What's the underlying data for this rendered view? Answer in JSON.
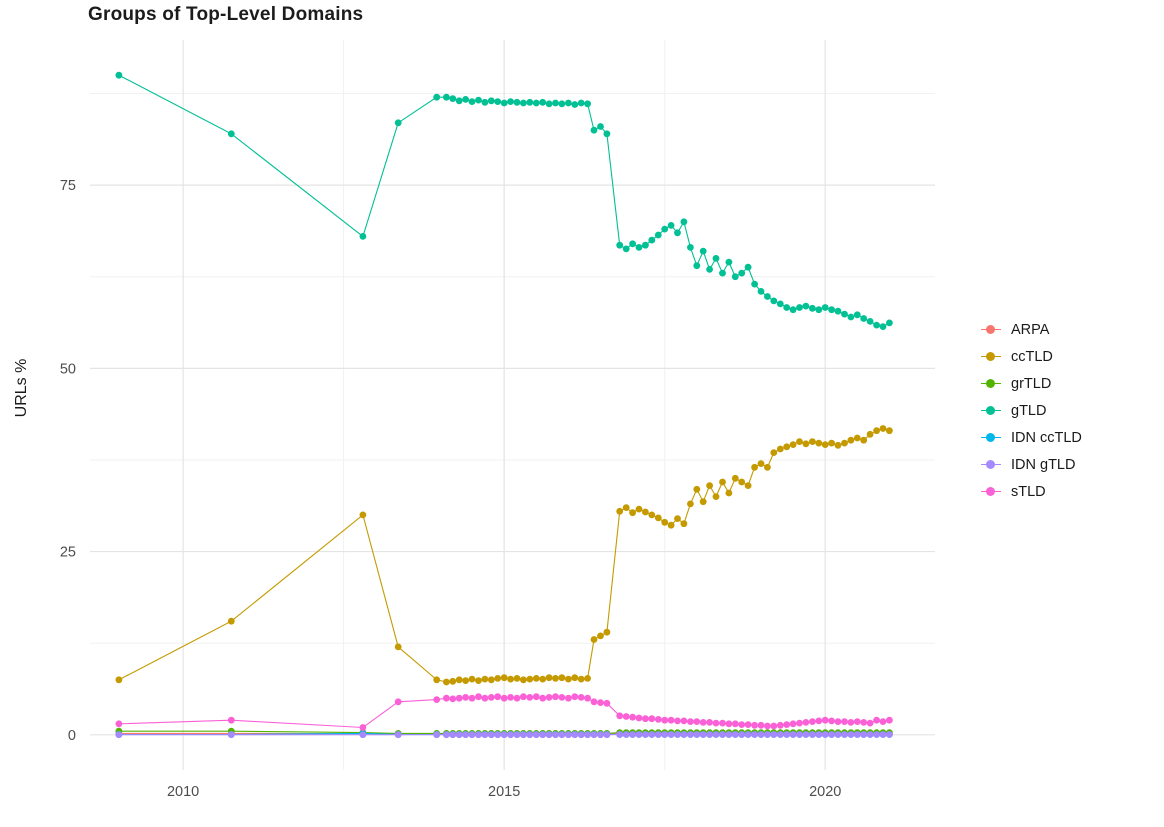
{
  "chart_data": {
    "type": "line",
    "title": "Groups of Top-Level Domains",
    "xlabel": "",
    "ylabel": "URLs %",
    "legend_position": "right",
    "grid": true,
    "xlim": [
      2008.55,
      2021.71
    ],
    "ylim": [
      -4.8,
      94.8
    ],
    "x_ticks": [
      2010,
      2015,
      2020
    ],
    "y_ticks": [
      0,
      25,
      50,
      75
    ],
    "x_minor": [
      2012.5,
      2017.5
    ],
    "y_minor": [
      12.5,
      37.5,
      62.5,
      87.5
    ],
    "x": [
      2009.0,
      2010.75,
      2012.8,
      2013.35,
      2013.95,
      2014.1,
      2014.2,
      2014.3,
      2014.4,
      2014.5,
      2014.6,
      2014.7,
      2014.8,
      2014.9,
      2015.0,
      2015.1,
      2015.2,
      2015.3,
      2015.4,
      2015.5,
      2015.6,
      2015.7,
      2015.8,
      2015.9,
      2016.0,
      2016.1,
      2016.2,
      2016.3,
      2016.4,
      2016.5,
      2016.6,
      2016.8,
      2016.9,
      2017.0,
      2017.1,
      2017.2,
      2017.3,
      2017.4,
      2017.5,
      2017.6,
      2017.7,
      2017.8,
      2017.9,
      2018.0,
      2018.1,
      2018.2,
      2018.3,
      2018.4,
      2018.5,
      2018.6,
      2018.7,
      2018.8,
      2018.9,
      2019.0,
      2019.1,
      2019.2,
      2019.3,
      2019.4,
      2019.5,
      2019.6,
      2019.7,
      2019.8,
      2019.9,
      2020.0,
      2020.1,
      2020.2,
      2020.3,
      2020.4,
      2020.5,
      2020.6,
      2020.7,
      2020.8,
      2020.9,
      2021.0
    ],
    "series": [
      {
        "name": "ARPA",
        "color": "#F8766D",
        "values": [
          0.2,
          0.2,
          0.15,
          0.1,
          0.1,
          0.1,
          0.1,
          0.1,
          0.1,
          0.1,
          0.1,
          0.1,
          0.1,
          0.1,
          0.1,
          0.1,
          0.1,
          0.1,
          0.1,
          0.1,
          0.1,
          0.1,
          0.1,
          0.1,
          0.1,
          0.1,
          0.1,
          0.1,
          0.1,
          0.1,
          0.1,
          0.1,
          0.1,
          0.1,
          0.1,
          0.1,
          0.1,
          0.1,
          0.1,
          0.1,
          0.1,
          0.1,
          0.1,
          0.1,
          0.1,
          0.1,
          0.1,
          0.1,
          0.1,
          0.1,
          0.1,
          0.1,
          0.1,
          0.1,
          0.1,
          0.1,
          0.1,
          0.1,
          0.1,
          0.1,
          0.1,
          0.1,
          0.1,
          0.1,
          0.1,
          0.1,
          0.1,
          0.1,
          0.1,
          0.1,
          0.1,
          0.1,
          0.1,
          0.1
        ]
      },
      {
        "name": "ccTLD",
        "color": "#C49A00",
        "values": [
          7.5,
          15.5,
          30.0,
          12.0,
          7.5,
          7.2,
          7.3,
          7.5,
          7.4,
          7.6,
          7.4,
          7.6,
          7.5,
          7.7,
          7.8,
          7.6,
          7.7,
          7.5,
          7.6,
          7.7,
          7.6,
          7.8,
          7.7,
          7.8,
          7.6,
          7.8,
          7.6,
          7.7,
          13.0,
          13.5,
          14.0,
          30.5,
          31.0,
          30.3,
          30.8,
          30.4,
          30.0,
          29.6,
          29.0,
          28.6,
          29.5,
          28.8,
          31.5,
          33.5,
          31.8,
          34.0,
          32.5,
          34.5,
          33.0,
          35.0,
          34.5,
          34.0,
          36.5,
          37.0,
          36.5,
          38.5,
          39.0,
          39.3,
          39.6,
          40.0,
          39.7,
          40.0,
          39.8,
          39.6,
          39.8,
          39.5,
          39.8,
          40.2,
          40.5,
          40.2,
          41.0,
          41.5,
          41.8,
          41.5
        ]
      },
      {
        "name": "grTLD",
        "color": "#53B400",
        "values": [
          0.5,
          0.5,
          0.3,
          0.2,
          0.2,
          0.2,
          0.2,
          0.2,
          0.2,
          0.2,
          0.2,
          0.2,
          0.2,
          0.2,
          0.2,
          0.2,
          0.2,
          0.2,
          0.2,
          0.2,
          0.2,
          0.2,
          0.2,
          0.2,
          0.2,
          0.2,
          0.2,
          0.2,
          0.2,
          0.2,
          0.2,
          0.3,
          0.3,
          0.3,
          0.3,
          0.3,
          0.3,
          0.3,
          0.3,
          0.3,
          0.3,
          0.3,
          0.3,
          0.3,
          0.3,
          0.3,
          0.3,
          0.3,
          0.3,
          0.3,
          0.3,
          0.3,
          0.3,
          0.3,
          0.3,
          0.3,
          0.3,
          0.3,
          0.3,
          0.3,
          0.3,
          0.3,
          0.3,
          0.3,
          0.3,
          0.3,
          0.3,
          0.3,
          0.3,
          0.3,
          0.3,
          0.3,
          0.3,
          0.3
        ]
      },
      {
        "name": "gTLD",
        "color": "#00C094",
        "values": [
          90.0,
          82.0,
          68.0,
          83.5,
          87.0,
          87.0,
          86.8,
          86.5,
          86.7,
          86.4,
          86.6,
          86.3,
          86.5,
          86.4,
          86.2,
          86.4,
          86.3,
          86.2,
          86.3,
          86.2,
          86.3,
          86.1,
          86.2,
          86.1,
          86.2,
          86.0,
          86.2,
          86.1,
          82.5,
          83.0,
          82.0,
          66.8,
          66.3,
          67.0,
          66.5,
          66.8,
          67.5,
          68.2,
          69.0,
          69.5,
          68.5,
          70.0,
          66.5,
          64.0,
          66.0,
          63.5,
          65.0,
          63.0,
          64.5,
          62.5,
          63.0,
          63.8,
          61.5,
          60.5,
          59.8,
          59.2,
          58.8,
          58.3,
          58.0,
          58.3,
          58.5,
          58.2,
          58.0,
          58.3,
          58.0,
          57.8,
          57.4,
          57.0,
          57.3,
          56.8,
          56.4,
          55.9,
          55.7,
          56.2
        ]
      },
      {
        "name": "IDN ccTLD",
        "color": "#00B6EB",
        "values": [
          0.05,
          0.05,
          0.2,
          0.05,
          0.05,
          0.05,
          0.05,
          0.05,
          0.05,
          0.05,
          0.05,
          0.05,
          0.05,
          0.05,
          0.05,
          0.05,
          0.05,
          0.05,
          0.05,
          0.05,
          0.05,
          0.05,
          0.05,
          0.05,
          0.05,
          0.05,
          0.05,
          0.05,
          0.05,
          0.05,
          0.05,
          0.05,
          0.05,
          0.05,
          0.05,
          0.05,
          0.05,
          0.05,
          0.05,
          0.05,
          0.05,
          0.05,
          0.05,
          0.05,
          0.05,
          0.05,
          0.05,
          0.05,
          0.05,
          0.05,
          0.05,
          0.05,
          0.05,
          0.05,
          0.05,
          0.05,
          0.05,
          0.05,
          0.05,
          0.05,
          0.05,
          0.05,
          0.05,
          0.05,
          0.05,
          0.05,
          0.05,
          0.05,
          0.05,
          0.05,
          0.05,
          0.05,
          0.05,
          0.05
        ]
      },
      {
        "name": "IDN gTLD",
        "color": "#A58AFF",
        "values": [
          0.02,
          0.02,
          0.02,
          0.02,
          0.02,
          0.02,
          0.02,
          0.02,
          0.02,
          0.02,
          0.02,
          0.02,
          0.02,
          0.02,
          0.02,
          0.02,
          0.02,
          0.02,
          0.02,
          0.02,
          0.02,
          0.02,
          0.02,
          0.02,
          0.02,
          0.02,
          0.02,
          0.02,
          0.02,
          0.02,
          0.02,
          0.05,
          0.05,
          0.05,
          0.05,
          0.05,
          0.05,
          0.05,
          0.05,
          0.05,
          0.05,
          0.05,
          0.05,
          0.05,
          0.05,
          0.05,
          0.05,
          0.05,
          0.05,
          0.05,
          0.05,
          0.05,
          0.05,
          0.05,
          0.05,
          0.05,
          0.05,
          0.05,
          0.05,
          0.05,
          0.05,
          0.05,
          0.05,
          0.05,
          0.05,
          0.05,
          0.05,
          0.05,
          0.05,
          0.05,
          0.05,
          0.05,
          0.05,
          0.05
        ]
      },
      {
        "name": "sTLD",
        "color": "#FB61D7",
        "values": [
          1.5,
          2.0,
          1.0,
          4.5,
          4.8,
          5.0,
          4.9,
          5.0,
          5.1,
          5.0,
          5.2,
          5.0,
          5.1,
          5.2,
          5.0,
          5.1,
          5.0,
          5.2,
          5.1,
          5.2,
          5.0,
          5.1,
          5.2,
          5.1,
          5.0,
          5.2,
          5.1,
          5.0,
          4.5,
          4.4,
          4.3,
          2.6,
          2.5,
          2.4,
          2.3,
          2.2,
          2.2,
          2.1,
          2.0,
          2.0,
          1.9,
          1.9,
          1.8,
          1.8,
          1.7,
          1.7,
          1.6,
          1.6,
          1.5,
          1.5,
          1.4,
          1.4,
          1.3,
          1.3,
          1.2,
          1.2,
          1.3,
          1.4,
          1.5,
          1.6,
          1.7,
          1.8,
          1.9,
          2.0,
          1.9,
          1.8,
          1.8,
          1.7,
          1.8,
          1.7,
          1.6,
          2.0,
          1.8,
          2.0
        ]
      }
    ]
  }
}
